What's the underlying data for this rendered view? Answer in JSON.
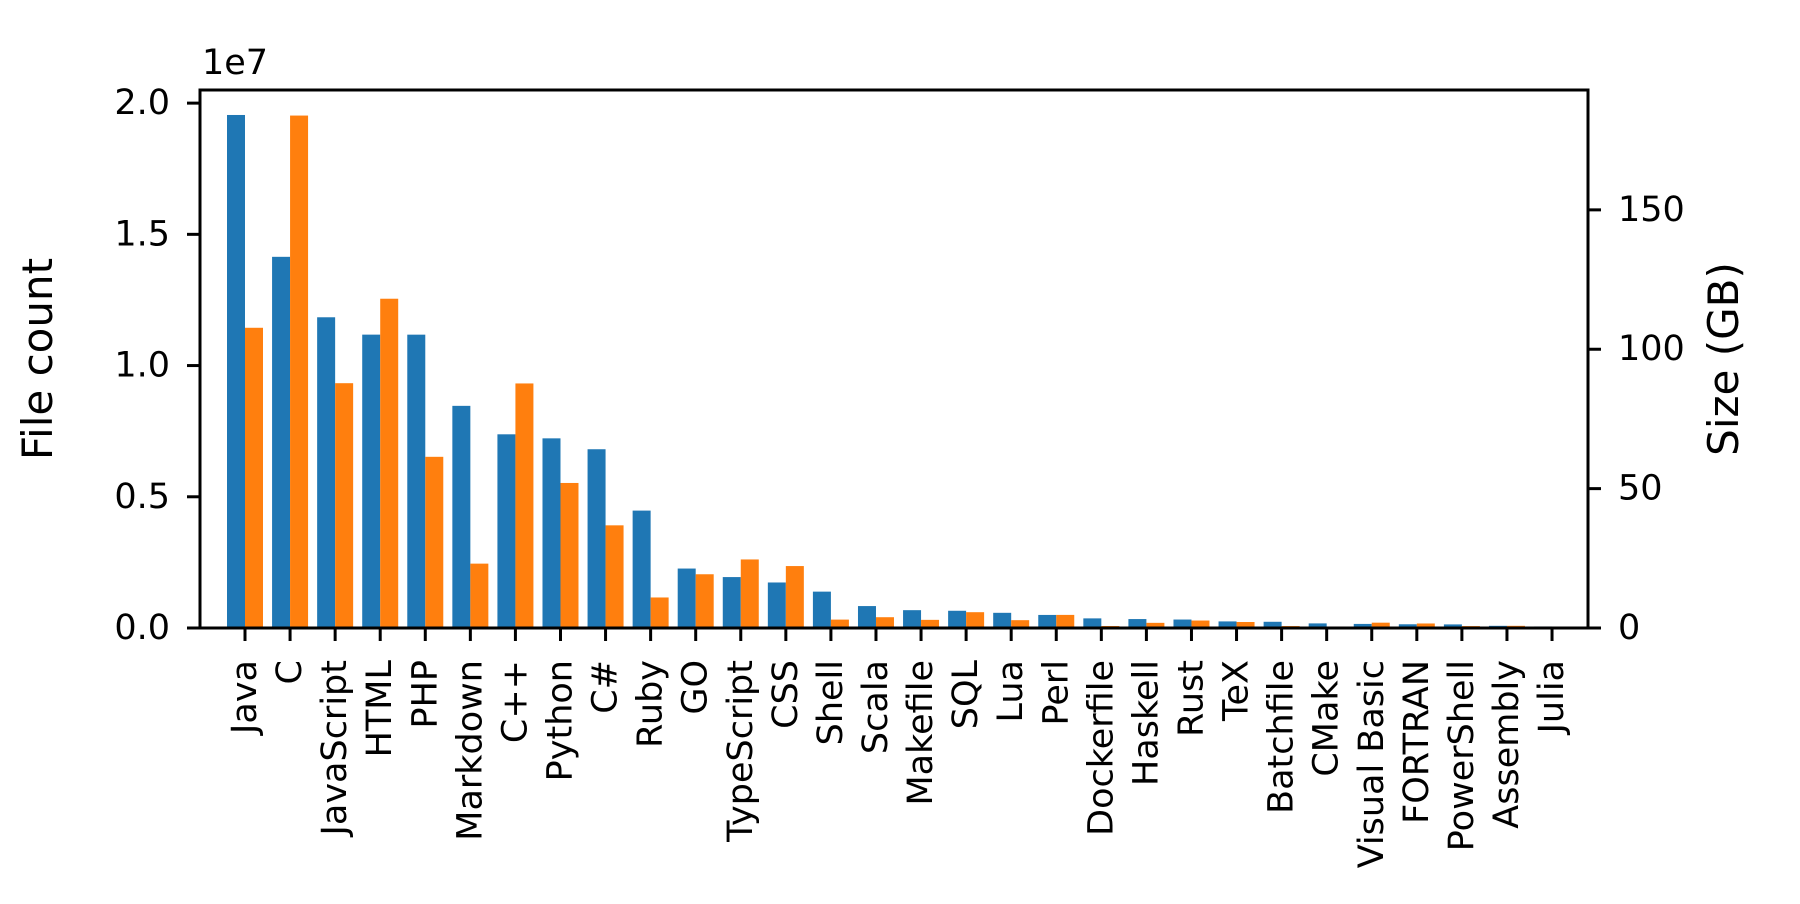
{
  "figure": {
    "background": "#ffffff",
    "offset_label": "1e7",
    "left_axis": {
      "label": "File count",
      "color": "#1f77b4",
      "tick_labels": [
        "0.0",
        "0.5",
        "1.0",
        "1.5",
        "2.0"
      ],
      "tick_values": [
        0,
        5000000,
        10000000,
        15000000,
        20000000
      ]
    },
    "right_axis": {
      "label": "Size (GB)",
      "color": "#ff7f0e",
      "tick_labels": [
        "0",
        "50",
        "100",
        "150"
      ],
      "tick_values": [
        0,
        50,
        100,
        150
      ]
    }
  },
  "chart_data": {
    "type": "bar",
    "title": "",
    "xlabel": "",
    "grid": false,
    "legend_position": "none",
    "categories": [
      "Java",
      "C",
      "JavaScript",
      "HTML",
      "PHP",
      "Markdown",
      "C++",
      "Python",
      "C#",
      "Ruby",
      "GO",
      "TypeScript",
      "CSS",
      "Shell",
      "Scala",
      "Makefile",
      "SQL",
      "Lua",
      "Perl",
      "Dockerfile",
      "Haskell",
      "Rust",
      "TeX",
      "Batchfile",
      "CMake",
      "Visual Basic",
      "FORTRAN",
      "PowerShell",
      "Assembly",
      "Julia"
    ],
    "series": [
      {
        "name": "File count",
        "axis": "left",
        "color": "#1f77b4",
        "values": [
          19548190,
          14143113,
          11839883,
          11178557,
          11177610,
          8464626,
          7380520,
          7226626,
          6811652,
          4473331,
          2265436,
          1940406,
          1734406,
          1385648,
          835755,
          679430,
          656671,
          578554,
          497949,
          366505,
          340623,
          322431,
          251015,
          236945,
          175282,
          155652,
          142038,
          136846,
          82905,
          58317
        ]
      },
      {
        "name": "Size (GB)",
        "axis": "right",
        "color": "#ff7f0e",
        "values": [
          107.7,
          183.83,
          87.82,
          118.12,
          61.41,
          23.09,
          87.73,
          52.03,
          36.83,
          10.95,
          19.28,
          24.59,
          22.22,
          3.01,
          3.87,
          2.92,
          5.67,
          2.81,
          4.7,
          0.71,
          1.85,
          2.68,
          2.15,
          0.7,
          0.54,
          1.91,
          1.62,
          0.69,
          0.78,
          0.29
        ]
      }
    ],
    "ylim_left": [
      0,
      20500000
    ],
    "ylim_right": [
      0,
      193
    ]
  }
}
